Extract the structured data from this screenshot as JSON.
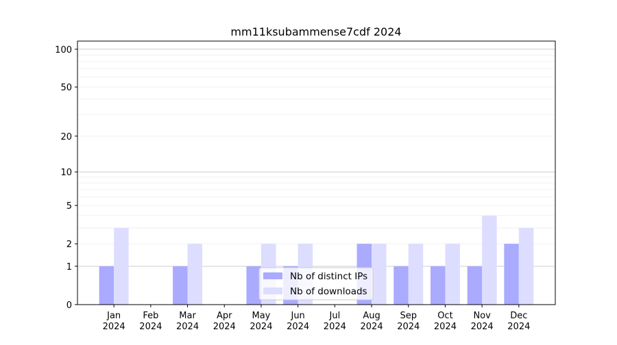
{
  "chart_data": {
    "type": "bar",
    "title": "mm11ksubammense7cdf 2024",
    "xlabel": "",
    "ylabel": "",
    "yscale": "log10(v+1)",
    "ylim": [
      0,
      116
    ],
    "grid": true,
    "legend_position": "bottom-center",
    "categories": [
      "Jan\n2024",
      "Feb\n2024",
      "Mar\n2024",
      "Apr\n2024",
      "May\n2024",
      "Jun\n2024",
      "Jul\n2024",
      "Aug\n2024",
      "Sep\n2024",
      "Oct\n2024",
      "Nov\n2024",
      "Dec\n2024"
    ],
    "category_months": [
      "Jan",
      "Feb",
      "Mar",
      "Apr",
      "May",
      "Jun",
      "Jul",
      "Aug",
      "Sep",
      "Oct",
      "Nov",
      "Dec"
    ],
    "category_year": "2024",
    "yticks": [
      0,
      1,
      2,
      5,
      10,
      20,
      50,
      100
    ],
    "ytick_labels": [
      "0",
      "1",
      "2",
      "5",
      "10",
      "20",
      "50",
      "100"
    ],
    "series": [
      {
        "name": "Nb of distinct IPs",
        "color": "#aaaaff",
        "values": [
          1,
          0,
          1,
          0,
          1,
          1,
          0,
          2,
          1,
          1,
          1,
          2
        ]
      },
      {
        "name": "Nb of downloads",
        "color": "#ddddff",
        "values": [
          3,
          0,
          2,
          0,
          2,
          2,
          0,
          2,
          2,
          2,
          4,
          3
        ]
      }
    ]
  }
}
